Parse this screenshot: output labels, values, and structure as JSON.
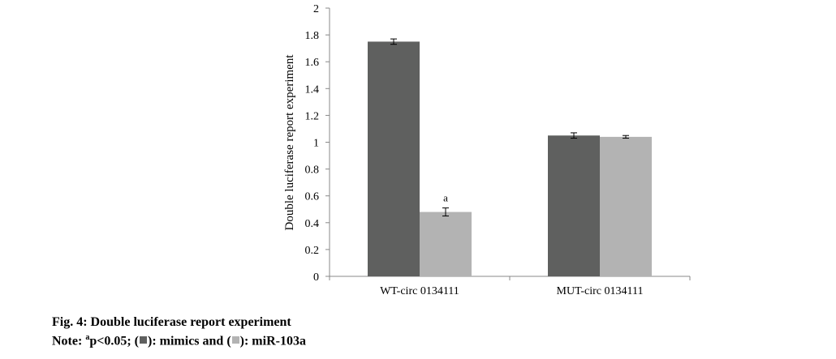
{
  "chart_data": {
    "type": "bar",
    "categories": [
      "WT-circ 0134111",
      "MUT-circ 0134111"
    ],
    "series": [
      {
        "name": "mimics",
        "values": [
          1.75,
          1.05
        ],
        "errors": [
          0.02,
          0.02
        ],
        "color": "#5f605f"
      },
      {
        "name": "miR-103a",
        "values": [
          0.48,
          1.04
        ],
        "errors": [
          0.03,
          0.01
        ],
        "color": "#b3b3b3"
      }
    ],
    "ylabel": "Double luciferase report experiment",
    "xlabel": "",
    "ylim": [
      0,
      2
    ],
    "yticks": [
      "0",
      "0.2",
      "0.4",
      "0.6",
      "0.8",
      "1",
      "1.2",
      "1.4",
      "1.6",
      "1.8",
      "2"
    ],
    "annotations": [
      {
        "category_index": 0,
        "series_index": 1,
        "text": "a"
      }
    ],
    "grid": false,
    "legend": "none"
  },
  "caption": {
    "title": "Fig. 4: Double luciferase report experiment",
    "note_prefix": "Note: ",
    "note_sup": "a",
    "note_p": "p<0.05; (",
    "note_mid": "): mimics and (",
    "note_end": "): miR-103a"
  }
}
